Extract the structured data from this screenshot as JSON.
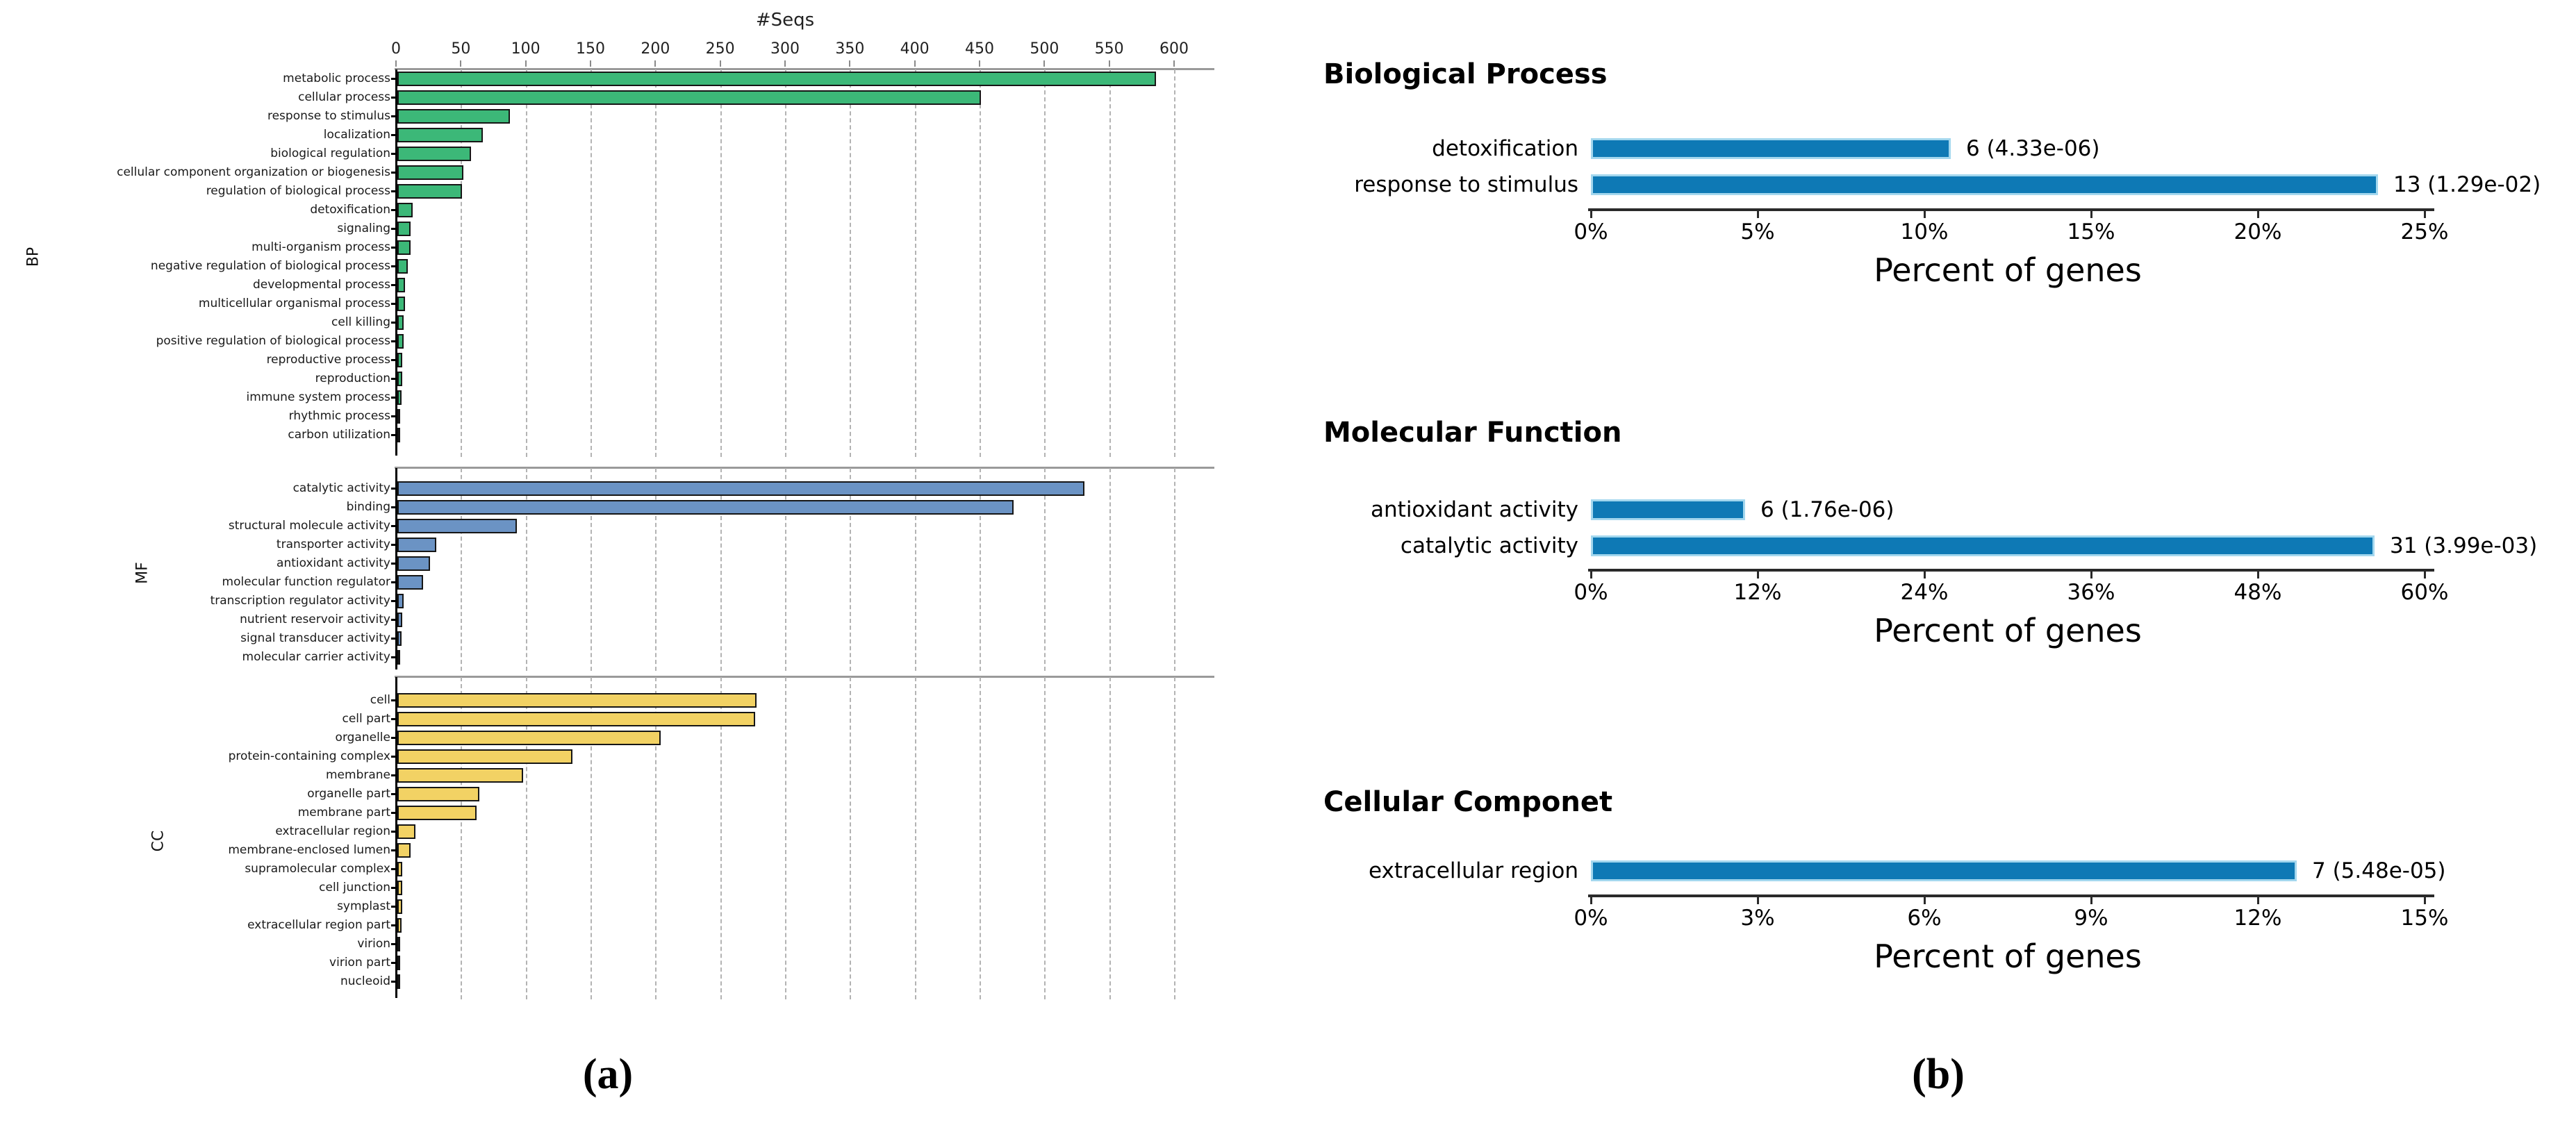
{
  "captions": {
    "a": "(a)",
    "b": "(b)"
  },
  "colors": {
    "bp_green": "#3cb878",
    "mf_blue": "#6b93c4",
    "cc_yellow": "#f2d264",
    "enrich_blue": "#0e79b5",
    "enrich_edge": "#a3d7ee",
    "bar_outline": "#161616"
  },
  "chart_data": [
    {
      "id": "go-annotation",
      "type": "bar",
      "orientation": "horizontal",
      "xlabel": "#Seqs",
      "xlim": [
        0,
        600
      ],
      "tick_step": 50,
      "tick_labels": [
        "0",
        "50",
        "100",
        "150",
        "200",
        "250",
        "300",
        "350",
        "400",
        "450",
        "500",
        "550",
        "600"
      ],
      "grid": "dashed-vertical",
      "groups": [
        {
          "name": "BP",
          "color": "#3cb878",
          "categories": [
            "metabolic process",
            "cellular process",
            "response to stimulus",
            "localization",
            "biological regulation",
            "cellular component organization or biogenesis",
            "regulation of biological process",
            "detoxification",
            "signaling",
            "multi-organism process",
            "negative regulation of biological process",
            "developmental process",
            "multicellular organismal process",
            "cell killing",
            "positive regulation of biological process",
            "reproductive process",
            "reproduction",
            "immune system process",
            "rhythmic process",
            "carbon utilization"
          ],
          "values": [
            585,
            450,
            87,
            66,
            57,
            51,
            50,
            12,
            10,
            10,
            8,
            6,
            6,
            5,
            5,
            4,
            4,
            3,
            1,
            1
          ]
        },
        {
          "name": "MF",
          "color": "#6b93c4",
          "categories": [
            "catalytic activity",
            "binding",
            "structural molecule activity",
            "transporter activity",
            "antioxidant activity",
            "molecular function regulator",
            "transcription regulator activity",
            "nutrient reservoir activity",
            "signal transducer activity",
            "molecular carrier activity"
          ],
          "values": [
            530,
            475,
            92,
            30,
            25,
            20,
            5,
            4,
            3,
            1
          ]
        },
        {
          "name": "CC",
          "color": "#f2d264",
          "categories": [
            "cell",
            "cell part",
            "organelle",
            "protein-containing complex",
            "membrane",
            "organelle part",
            "membrane part",
            "extracellular region",
            "membrane-enclosed lumen",
            "supramolecular complex",
            "cell junction",
            "symplast",
            "extracellular region part",
            "virion",
            "virion part",
            "nucleoid"
          ],
          "values": [
            277,
            276,
            203,
            135,
            97,
            63,
            61,
            14,
            10,
            4,
            4,
            4,
            3,
            1,
            1,
            1
          ]
        }
      ]
    },
    {
      "id": "enrichment-bp",
      "type": "bar",
      "orientation": "horizontal",
      "title": "Biological Process",
      "xlabel": "Percent of genes",
      "xlim": [
        0,
        25
      ],
      "tick_labels": [
        "0%",
        "5%",
        "10%",
        "15%",
        "20%",
        "25%"
      ],
      "categories": [
        "detoxification",
        "response to stimulus"
      ],
      "values_percent": [
        10.8,
        23.6
      ],
      "annotations": [
        "6 (4.33e-06)",
        "13 (1.29e-02)"
      ]
    },
    {
      "id": "enrichment-mf",
      "type": "bar",
      "orientation": "horizontal",
      "title": "Molecular Function",
      "xlabel": "Percent of genes",
      "xlim": [
        0,
        60
      ],
      "tick_labels": [
        "0%",
        "12%",
        "24%",
        "36%",
        "48%",
        "60%"
      ],
      "categories": [
        "antioxidant activity",
        "catalytic activity"
      ],
      "values_percent": [
        11.1,
        56.4
      ],
      "annotations": [
        "6 (1.76e-06)",
        "31 (3.99e-03)"
      ]
    },
    {
      "id": "enrichment-cc",
      "type": "bar",
      "orientation": "horizontal",
      "title": "Cellular Componet",
      "xlabel": "Percent of genes",
      "xlim": [
        0,
        15
      ],
      "tick_labels": [
        "0%",
        "3%",
        "6%",
        "9%",
        "12%",
        "15%"
      ],
      "categories": [
        "extracellular region"
      ],
      "values_percent": [
        12.7
      ],
      "annotations": [
        "7 (5.48e-05)"
      ]
    }
  ]
}
